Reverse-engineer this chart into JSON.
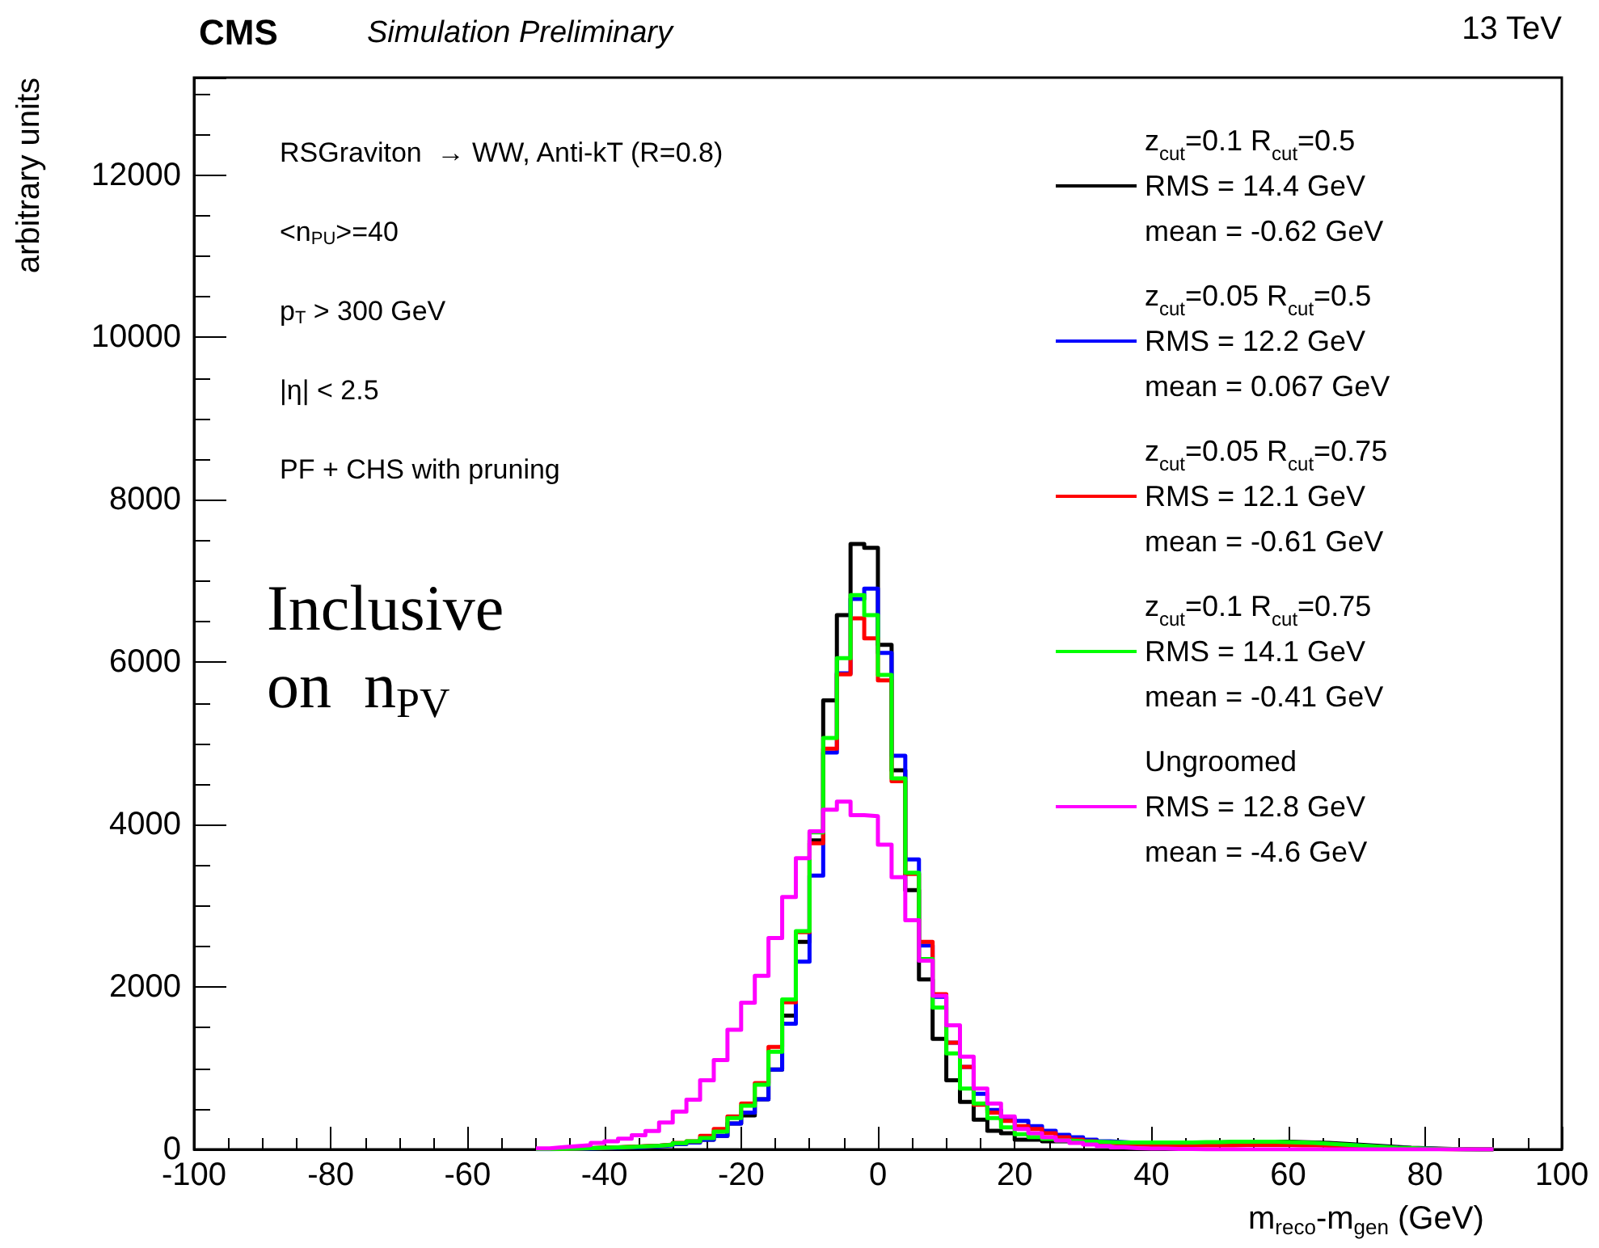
{
  "chart_data": {
    "type": "histogram",
    "title": "CMS",
    "subtitle": "Simulation Preliminary",
    "xlabel": "m$_{reco}$-m$_{gen}$ (GeV)",
    "ylabel": "arbitrary units",
    "bins": [
      -50,
      -48,
      -46,
      -44,
      -42,
      -40,
      -38,
      -36,
      -34,
      -32,
      -30,
      -28,
      -26,
      -24,
      -22,
      -20,
      -18,
      -16,
      -14,
      -12,
      -10,
      -8,
      -6,
      -4,
      -2,
      0,
      2,
      4,
      6,
      8,
      10,
      12,
      14,
      16,
      18,
      20,
      22,
      24,
      26,
      28,
      30,
      32,
      34,
      36,
      38,
      40,
      42,
      44,
      46,
      48,
      50,
      52,
      54,
      56,
      58,
      60,
      62,
      64,
      66,
      68,
      70,
      72,
      74,
      76,
      78,
      80,
      82,
      84,
      86,
      88,
      90
    ],
    "series": [
      {
        "name": "z$_{cut}$=0.1 R$_{cut}$=0.5\nRMS = 14.4 GeV\nmean = -0.62 GeV",
        "color": "#000000",
        "values": [
          5,
          8,
          10,
          15,
          20,
          25,
          30,
          38,
          44,
          58,
          75,
          95,
          120,
          166,
          319,
          418,
          618,
          983,
          1647,
          2556,
          3805,
          5531,
          6580,
          7457,
          7410,
          6215,
          4668,
          3194,
          2092,
          1361,
          850,
          584,
          365,
          230,
          200,
          120,
          120,
          100,
          100,
          90,
          90,
          85,
          80,
          80,
          80,
          80,
          80,
          80,
          85,
          85,
          90,
          90,
          95,
          95,
          95,
          90,
          85,
          80,
          70,
          60,
          50,
          40,
          30,
          20,
          15,
          10,
          5,
          5,
          0,
          0
        ]
      },
      {
        "name": "z$_{cut}$=0.05 R$_{cut}$=0.5\nRMS = 12.2 GeV\nmean = 0.067 GeV",
        "color": "#0000ff",
        "values": [
          3,
          5,
          8,
          10,
          15,
          20,
          25,
          30,
          38,
          50,
          65,
          85,
          120,
          166,
          319,
          452,
          618,
          983,
          1547,
          2311,
          3373,
          4887,
          5863,
          6780,
          6906,
          6115,
          4847,
          3572,
          2510,
          1879,
          1315,
          1016,
          684,
          485,
          385,
          352,
          285,
          230,
          180,
          150,
          120,
          100,
          90,
          80,
          70,
          70,
          65,
          65,
          65,
          65,
          70,
          70,
          75,
          75,
          75,
          70,
          65,
          60,
          55,
          50,
          40,
          30,
          20,
          15,
          10,
          5,
          5,
          0,
          0,
          0
        ]
      },
      {
        "name": "z$_{cut}$=0.05 R$_{cut}$=0.75\nRMS = 12.1 GeV\nmean = -0.61 GeV",
        "color": "#ff0000",
        "values": [
          5,
          8,
          10,
          15,
          20,
          25,
          33,
          40,
          46,
          60,
          80,
          100,
          166,
          252,
          405,
          564,
          817,
          1262,
          1813,
          2676,
          3771,
          4934,
          5850,
          6540,
          6295,
          5777,
          4535,
          3393,
          2556,
          1912,
          1315,
          1016,
          551,
          452,
          352,
          285,
          252,
          200,
          150,
          120,
          100,
          80,
          70,
          60,
          55,
          50,
          50,
          50,
          50,
          50,
          50,
          55,
          55,
          55,
          55,
          50,
          50,
          45,
          40,
          35,
          30,
          20,
          15,
          10,
          5,
          5,
          0,
          0,
          0,
          0
        ]
      },
      {
        "name": "z$_{cut}$=0.1 R$_{cut}$=0.75\nRMS = 14.1 GeV\nmean = -0.41 GeV",
        "color": "#00ff00",
        "values": [
          5,
          8,
          10,
          15,
          20,
          25,
          30,
          38,
          44,
          58,
          78,
          100,
          139,
          219,
          385,
          538,
          797,
          1202,
          1846,
          2689,
          3904,
          5066,
          6050,
          6826,
          6580,
          5843,
          4568,
          3406,
          2344,
          1746,
          1182,
          750,
          564,
          385,
          272,
          186,
          153,
          130,
          110,
          100,
          95,
          90,
          85,
          85,
          85,
          85,
          85,
          85,
          90,
          90,
          95,
          95,
          95,
          95,
          90,
          85,
          80,
          70,
          60,
          50,
          40,
          30,
          20,
          15,
          10,
          5,
          5,
          0,
          0,
          0
        ]
      },
      {
        "name": "Ungroomed\nRMS = 12.8 GeV\nmean = -4.6 GeV",
        "color": "#ff00ff",
        "values": [
          13,
          27,
          40,
          53,
          80,
          100,
          133,
          173,
          226,
          332,
          465,
          611,
          850,
          1100,
          1474,
          1806,
          2138,
          2603,
          3108,
          3586,
          3918,
          4183,
          4283,
          4117,
          4104,
          3752,
          3353,
          2822,
          2324,
          1892,
          1527,
          1142,
          750,
          565,
          405,
          252,
          200,
          150,
          110,
          80,
          60,
          40,
          25,
          15,
          10,
          10,
          5,
          5,
          0,
          0,
          0,
          0,
          0,
          0,
          0,
          0,
          0,
          0,
          0,
          0,
          0,
          0,
          0,
          0,
          0,
          0,
          0,
          0,
          0,
          0
        ]
      }
    ],
    "xlim": [
      -100,
      100
    ],
    "xticks": [
      -100,
      -80,
      -60,
      -40,
      -20,
      0,
      20,
      40,
      60,
      80,
      100
    ],
    "ylim": [
      0,
      13200
    ],
    "yticks": [
      0,
      2000,
      4000,
      6000,
      8000,
      10000,
      12000
    ],
    "legend": "top right",
    "grid": false,
    "annotations": [
      "RSGraviton  → WW, Anti-kT (R=0.8)",
      "<n$_{PU}$>=40",
      "p$_{T}$ > 300 GeV",
      "|η| < 2.5",
      "PF + CHS with pruning",
      "Inclusive\non  n$_{PV}$",
      "13 TeV"
    ]
  }
}
